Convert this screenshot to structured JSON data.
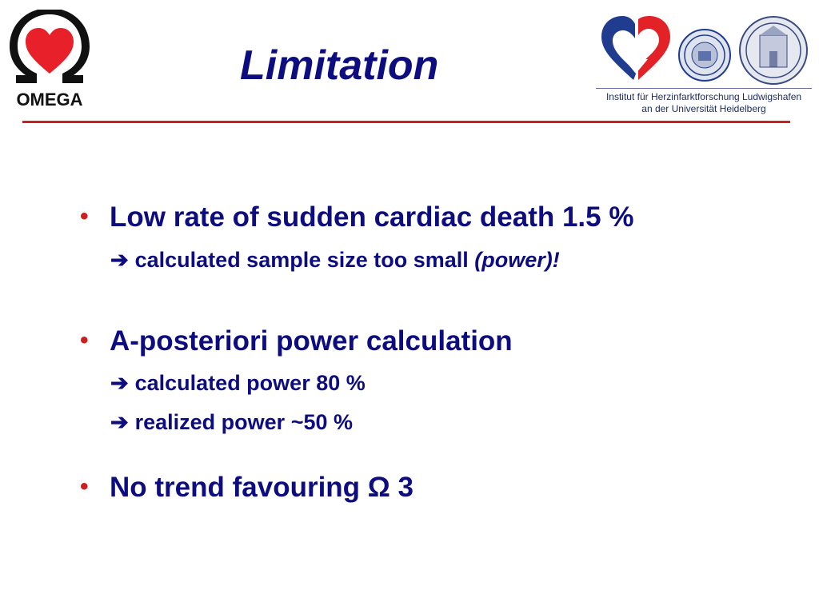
{
  "title": "Limitation",
  "omega_logo": {
    "label": "OMEGA",
    "colors": {
      "heart": "#e8202a",
      "omega": "#111111"
    }
  },
  "institute": {
    "line1": "Institut für Herzinfarktforschung Ludwigshafen",
    "line2": "an der Universität Heidelberg",
    "colors": {
      "blue": "#1f3c8f",
      "red": "#e32228"
    }
  },
  "bullets": [
    {
      "text": "Low rate of sudden cardiac death 1.5 %",
      "subs": [
        {
          "arrow": "➔",
          "text": "calculated sample size too small ",
          "emphasis": "(power)!"
        }
      ]
    },
    {
      "text": "A-posteriori power calculation",
      "subs": [
        {
          "arrow": "➔",
          "text": "calculated power 80 %"
        },
        {
          "arrow": "➔",
          "text": "realized power ~50 %"
        }
      ]
    },
    {
      "text": "No trend favouring Ω 3"
    }
  ],
  "bullet_symbol": "•",
  "colors": {
    "title": "#0d0d80",
    "bullet": "#cc1f1f",
    "divider": "#cc2020"
  }
}
